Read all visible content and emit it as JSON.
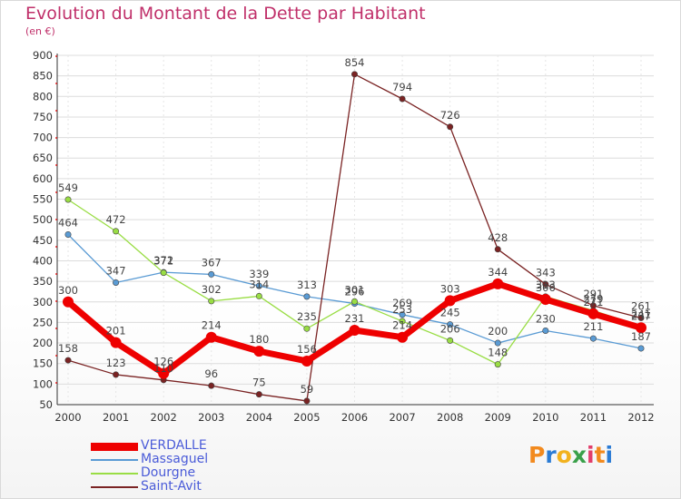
{
  "title": "Evolution du Montant de la Dette par Habitant",
  "subtitle": "(en €)",
  "logo": {
    "text": "Proxiti",
    "letters": [
      "P",
      "r",
      "o",
      "x",
      "i",
      "t",
      "i"
    ],
    "colors": [
      "#f28a1e",
      "#2a7bd4",
      "#f2b21e",
      "#3aa04a",
      "#e23d6b",
      "#f28a1e",
      "#2a7bd4"
    ]
  },
  "chart_data": {
    "type": "line",
    "title": "Evolution du Montant de la Dette par Habitant",
    "subtitle": "(en €)",
    "x": [
      "2000",
      "2001",
      "2002",
      "2003",
      "2004",
      "2005",
      "2006",
      "2007",
      "2008",
      "2009",
      "2010",
      "2011",
      "2012"
    ],
    "ylim": [
      50,
      900
    ],
    "yticks": [
      50,
      100,
      150,
      200,
      250,
      300,
      350,
      400,
      450,
      500,
      550,
      600,
      650,
      700,
      750,
      800,
      850,
      900
    ],
    "grid": true,
    "legend_position": "bottom-left",
    "series": [
      {
        "name": "VERDALLE",
        "color": "#ee0000",
        "width": 7,
        "marker": 6,
        "values": [
          300,
          201,
          126,
          214,
          180,
          156,
          231,
          214,
          303,
          344,
          306,
          271,
          237
        ]
      },
      {
        "name": "Massaguel",
        "color": "#5a9bd4",
        "width": 1.3,
        "marker": 3.2,
        "values": [
          464,
          347,
          372,
          367,
          339,
          313,
          296,
          269,
          245,
          200,
          230,
          211,
          187
        ]
      },
      {
        "name": "Dourgne",
        "color": "#99dd44",
        "width": 1.3,
        "marker": 3.2,
        "values": [
          549,
          472,
          371,
          302,
          314,
          235,
          301,
          253,
          206,
          148,
          313,
          279,
          241
        ]
      },
      {
        "name": "Saint-Avit",
        "color": "#7a2323",
        "width": 1.3,
        "marker": 3.2,
        "values": [
          158,
          123,
          110,
          96,
          75,
          59,
          854,
          794,
          726,
          428,
          343,
          291,
          261
        ]
      }
    ]
  }
}
